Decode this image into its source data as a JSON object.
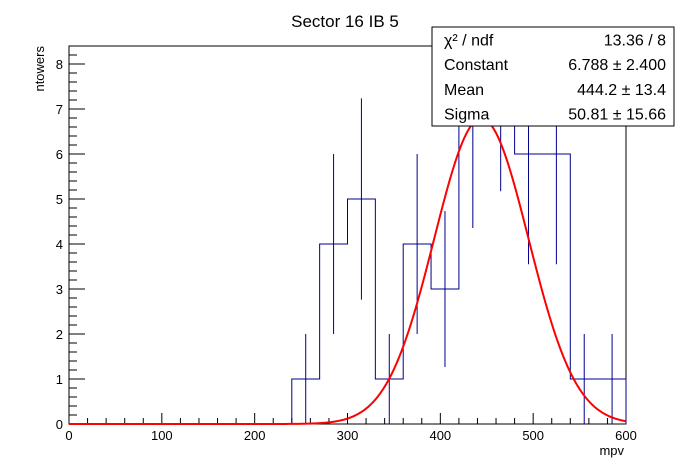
{
  "chart_data": {
    "type": "histogram",
    "title": "Sector 16 IB 5",
    "xlabel": "mpv",
    "ylabel": "ntowers",
    "xlim": [
      0,
      600
    ],
    "ylim": [
      0,
      8.4
    ],
    "xticks": [
      0,
      100,
      200,
      300,
      400,
      500,
      600
    ],
    "yticks": [
      0,
      1,
      2,
      3,
      4,
      5,
      6,
      7,
      8
    ],
    "bin_width": 30,
    "bins": [
      {
        "x0": 240,
        "x1": 270,
        "y": 1
      },
      {
        "x0": 270,
        "x1": 300,
        "y": 4
      },
      {
        "x0": 300,
        "x1": 330,
        "y": 5
      },
      {
        "x0": 330,
        "x1": 360,
        "y": 1
      },
      {
        "x0": 360,
        "x1": 390,
        "y": 4
      },
      {
        "x0": 390,
        "x1": 420,
        "y": 3
      },
      {
        "x0": 420,
        "x1": 450,
        "y": 7
      },
      {
        "x0": 450,
        "x1": 480,
        "y": 8
      },
      {
        "x0": 480,
        "x1": 510,
        "y": 6
      },
      {
        "x0": 510,
        "x1": 540,
        "y": 6
      },
      {
        "x0": 540,
        "x1": 570,
        "y": 1
      },
      {
        "x0": 570,
        "x1": 600,
        "y": 1
      }
    ],
    "fit": {
      "function": "gaus",
      "constant": 6.788,
      "mean": 444.2,
      "sigma": 50.81,
      "range": [
        0,
        600
      ]
    },
    "colors": {
      "histogram": "#00008b",
      "fit": "#ff0000",
      "axis": "#000000"
    },
    "stats": {
      "rows": [
        {
          "label": "χ² / ndf",
          "value": "13.36 / 8"
        },
        {
          "label": "Constant",
          "value": "6.788 ± 2.400"
        },
        {
          "label": "Mean",
          "value": "444.2 ± 13.4"
        },
        {
          "label": "Sigma",
          "value": "50.81 ± 15.66"
        }
      ],
      "placement": "top-right"
    }
  }
}
